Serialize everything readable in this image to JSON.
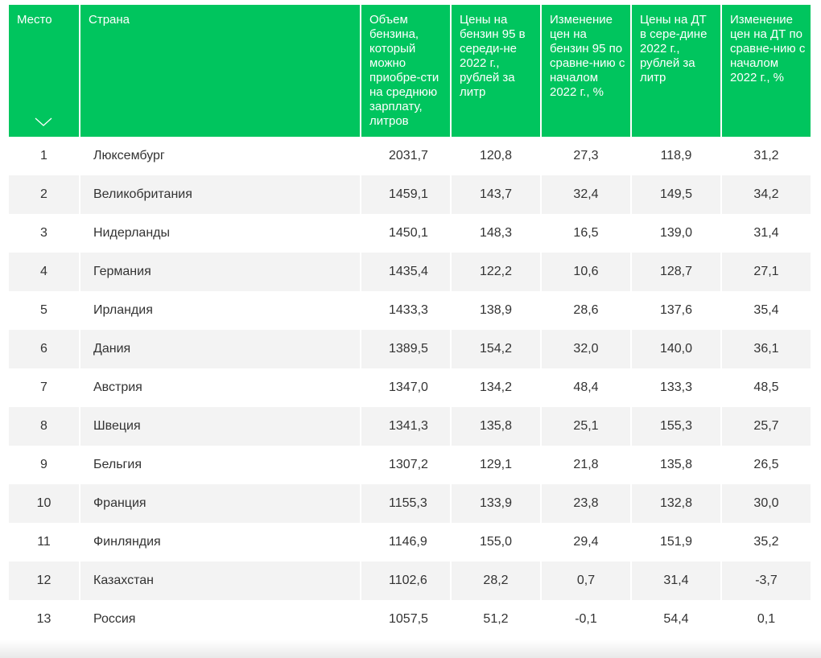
{
  "table": {
    "headers": {
      "place": "Место",
      "country": "Страна",
      "volume": "Объем бензина, который можно приобре-сти на среднюю зарплату, литров",
      "price95": "Цены на бензин 95 в середи-не 2022 г., рублей за литр",
      "change95": "Изменение цен на бензин 95 по сравне-нию с началом 2022 г., %",
      "priceDT": "Цены на ДТ в сере-дине 2022 г., рублей за литр",
      "changeDT": "Изменение цен на ДТ по сравне-нию с началом 2022 г., %"
    },
    "sort_icon": "chevron-down-icon",
    "rows": [
      {
        "place": "1",
        "country": "Люксембург",
        "volume": "2031,7",
        "price95": "120,8",
        "change95": "27,3",
        "priceDT": "118,9",
        "changeDT": "31,2"
      },
      {
        "place": "2",
        "country": "Великобритания",
        "volume": "1459,1",
        "price95": "143,7",
        "change95": "32,4",
        "priceDT": "149,5",
        "changeDT": "34,2"
      },
      {
        "place": "3",
        "country": "Нидерланды",
        "volume": "1450,1",
        "price95": "148,3",
        "change95": "16,5",
        "priceDT": "139,0",
        "changeDT": "31,4"
      },
      {
        "place": "4",
        "country": "Германия",
        "volume": "1435,4",
        "price95": "122,2",
        "change95": "10,6",
        "priceDT": "128,7",
        "changeDT": "27,1"
      },
      {
        "place": "5",
        "country": "Ирландия",
        "volume": "1433,3",
        "price95": "138,9",
        "change95": "28,6",
        "priceDT": "137,6",
        "changeDT": "35,4"
      },
      {
        "place": "6",
        "country": "Дания",
        "volume": "1389,5",
        "price95": "154,2",
        "change95": "32,0",
        "priceDT": "140,0",
        "changeDT": "36,1"
      },
      {
        "place": "7",
        "country": "Австрия",
        "volume": "1347,0",
        "price95": "134,2",
        "change95": "48,4",
        "priceDT": "133,3",
        "changeDT": "48,5"
      },
      {
        "place": "8",
        "country": "Швеция",
        "volume": "1341,3",
        "price95": "135,8",
        "change95": "25,1",
        "priceDT": "155,3",
        "changeDT": "25,7"
      },
      {
        "place": "9",
        "country": "Бельгия",
        "volume": "1307,2",
        "price95": "129,1",
        "change95": "21,8",
        "priceDT": "135,8",
        "changeDT": "26,5"
      },
      {
        "place": "10",
        "country": "Франция",
        "volume": "1155,3",
        "price95": "133,9",
        "change95": "23,8",
        "priceDT": "132,8",
        "changeDT": "30,0"
      },
      {
        "place": "11",
        "country": "Финляндия",
        "volume": "1146,9",
        "price95": "155,0",
        "change95": "29,4",
        "priceDT": "151,9",
        "changeDT": "35,2"
      },
      {
        "place": "12",
        "country": "Казахстан",
        "volume": "1102,6",
        "price95": "28,2",
        "change95": "0,7",
        "priceDT": "31,4",
        "changeDT": "-3,7"
      },
      {
        "place": "13",
        "country": "Россия",
        "volume": "1057,5",
        "price95": "51,2",
        "change95": "-0,1",
        "priceDT": "54,4",
        "changeDT": "0,1"
      }
    ]
  },
  "colors": {
    "header_bg": "#00c55e",
    "header_text": "#ffffff",
    "row_stripe": "#f3f3f3",
    "body_text": "#333333"
  }
}
